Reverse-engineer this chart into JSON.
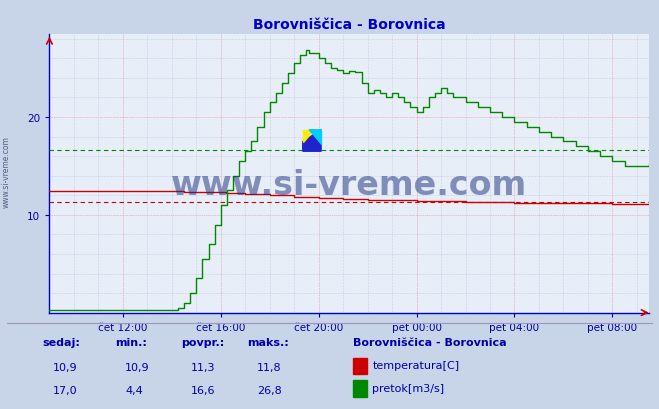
{
  "title": "Borovniščica - Borovnica",
  "title_color": "#0000cc",
  "bg_color": "#c8d4e8",
  "plot_bg_color": "#e8eef8",
  "grid_blue_color": "#8899cc",
  "grid_pink_color": "#ffaaaa",
  "grid_pink_major_color": "#ff8888",
  "xlabel_color": "#0000aa",
  "x_tick_labels": [
    "čet 12:00",
    "čet 16:00",
    "čet 20:00",
    "pet 00:00",
    "pet 04:00",
    "pet 08:00"
  ],
  "x_tick_positions": [
    12,
    16,
    20,
    24,
    28,
    32
  ],
  "y_ticks": [
    10,
    20
  ],
  "ylim_min": 0,
  "ylim_max": 28.5,
  "xlim_min": 9,
  "xlim_max": 33.5,
  "watermark": "www.si-vreme.com",
  "watermark_color": "#1a2e7a",
  "watermark_alpha": 0.5,
  "temp_color": "#cc0000",
  "temp_avg_color": "#cc0000",
  "flow_color": "#008800",
  "flow_avg_color": "#008800",
  "temp_avg_value": 11.3,
  "flow_avg_value": 16.6,
  "footer_text_color": "#0000aa",
  "footer_labels": [
    "sedaj:",
    "min.:",
    "povpr.:",
    "maks.:"
  ],
  "footer_temp": [
    "10,9",
    "10,9",
    "11,3",
    "11,8"
  ],
  "footer_flow": [
    "17,0",
    "4,4",
    "16,6",
    "26,8"
  ],
  "station_name": "Borovniščica - Borovnica",
  "legend_temp": "temperatura[C]",
  "legend_flow": "pretok[m3/s]",
  "axis_color": "#0000cc",
  "spine_color": "#0000cc"
}
